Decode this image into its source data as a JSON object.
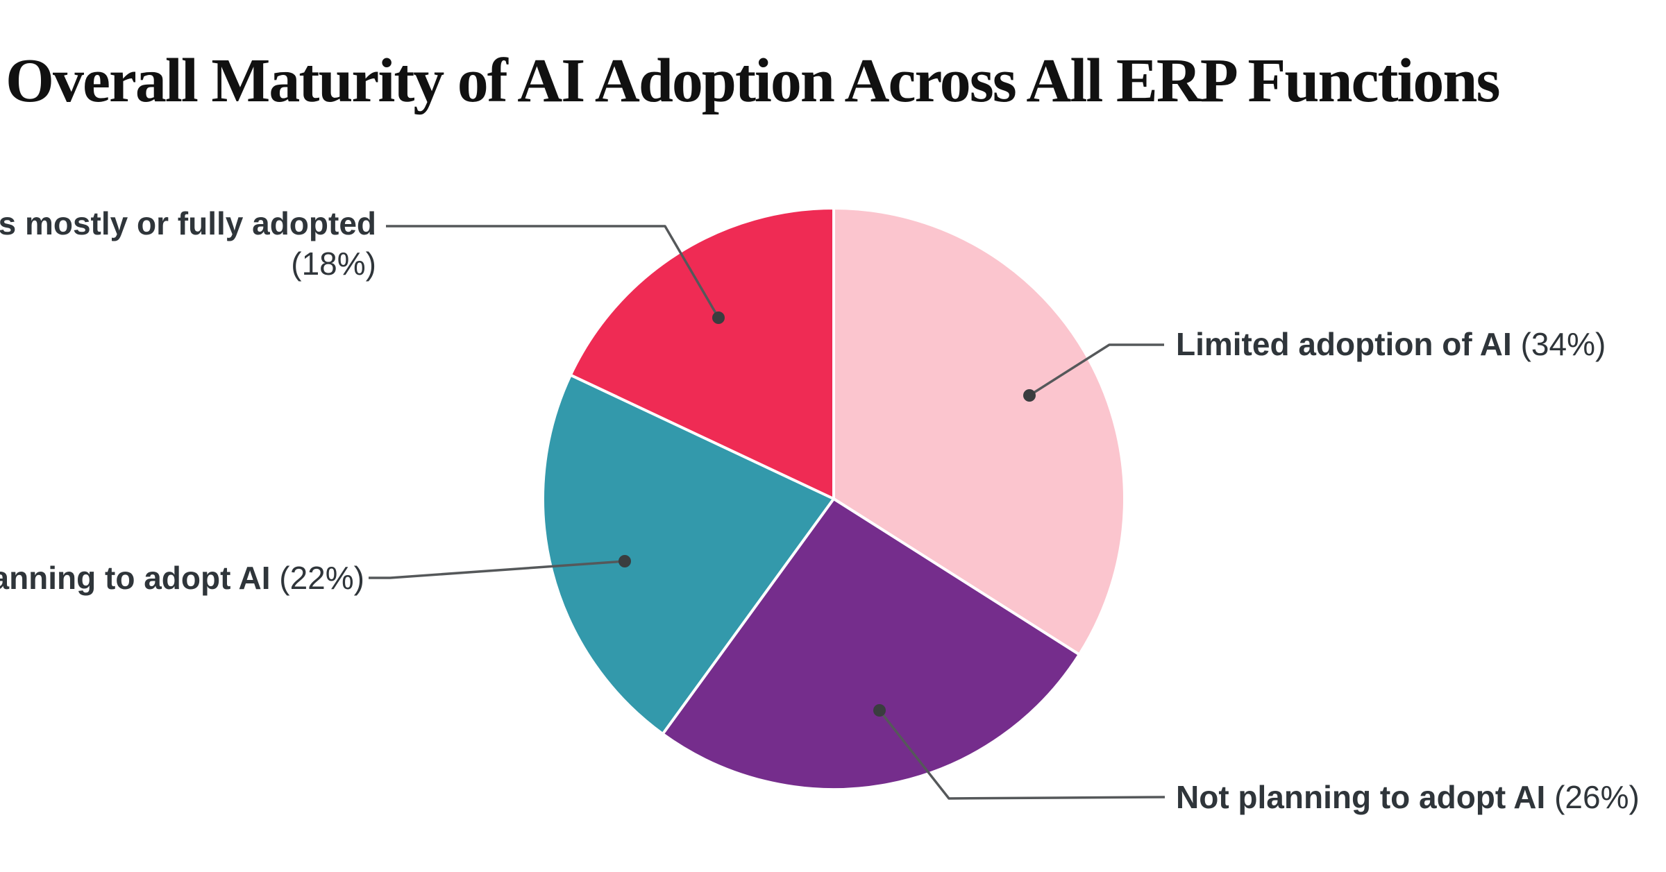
{
  "title": {
    "text": "Overall Maturity of AI Adoption Across All ERP Functions",
    "color": "#111111"
  },
  "chart_data": {
    "type": "pie",
    "title": "Overall Maturity of AI Adoption Across All ERP Functions",
    "direction": "clockwise",
    "start_angle_deg": 0,
    "total": 100,
    "slices": [
      {
        "id": "limited",
        "label": "Limited adoption of AI",
        "value": 34,
        "percent_label": "(34%)",
        "color": "#FBC5CE",
        "label_side": "right"
      },
      {
        "id": "not-planning",
        "label": "Not planning to adopt AI",
        "value": 26,
        "percent_label": "(26%)",
        "color": "#752D8C",
        "label_side": "bottom-right"
      },
      {
        "id": "planning",
        "label": "Planning to adopt AI",
        "value": 22,
        "percent_label": "(22%)",
        "color": "#3399AB",
        "label_side": "left"
      },
      {
        "id": "mostly-fully",
        "label": "AI is mostly or fully adopted",
        "value": 18,
        "percent_label": "(18%)",
        "color": "#EF2B54",
        "label_side": "top-left"
      }
    ],
    "slice_border_color": "#FFFFFF",
    "label_text_color": "#2F353A",
    "connector_line_color": "#55585A",
    "connector_dot_color": "#3A3D3F",
    "legend_position": "none",
    "background": "#FFFFFF"
  }
}
